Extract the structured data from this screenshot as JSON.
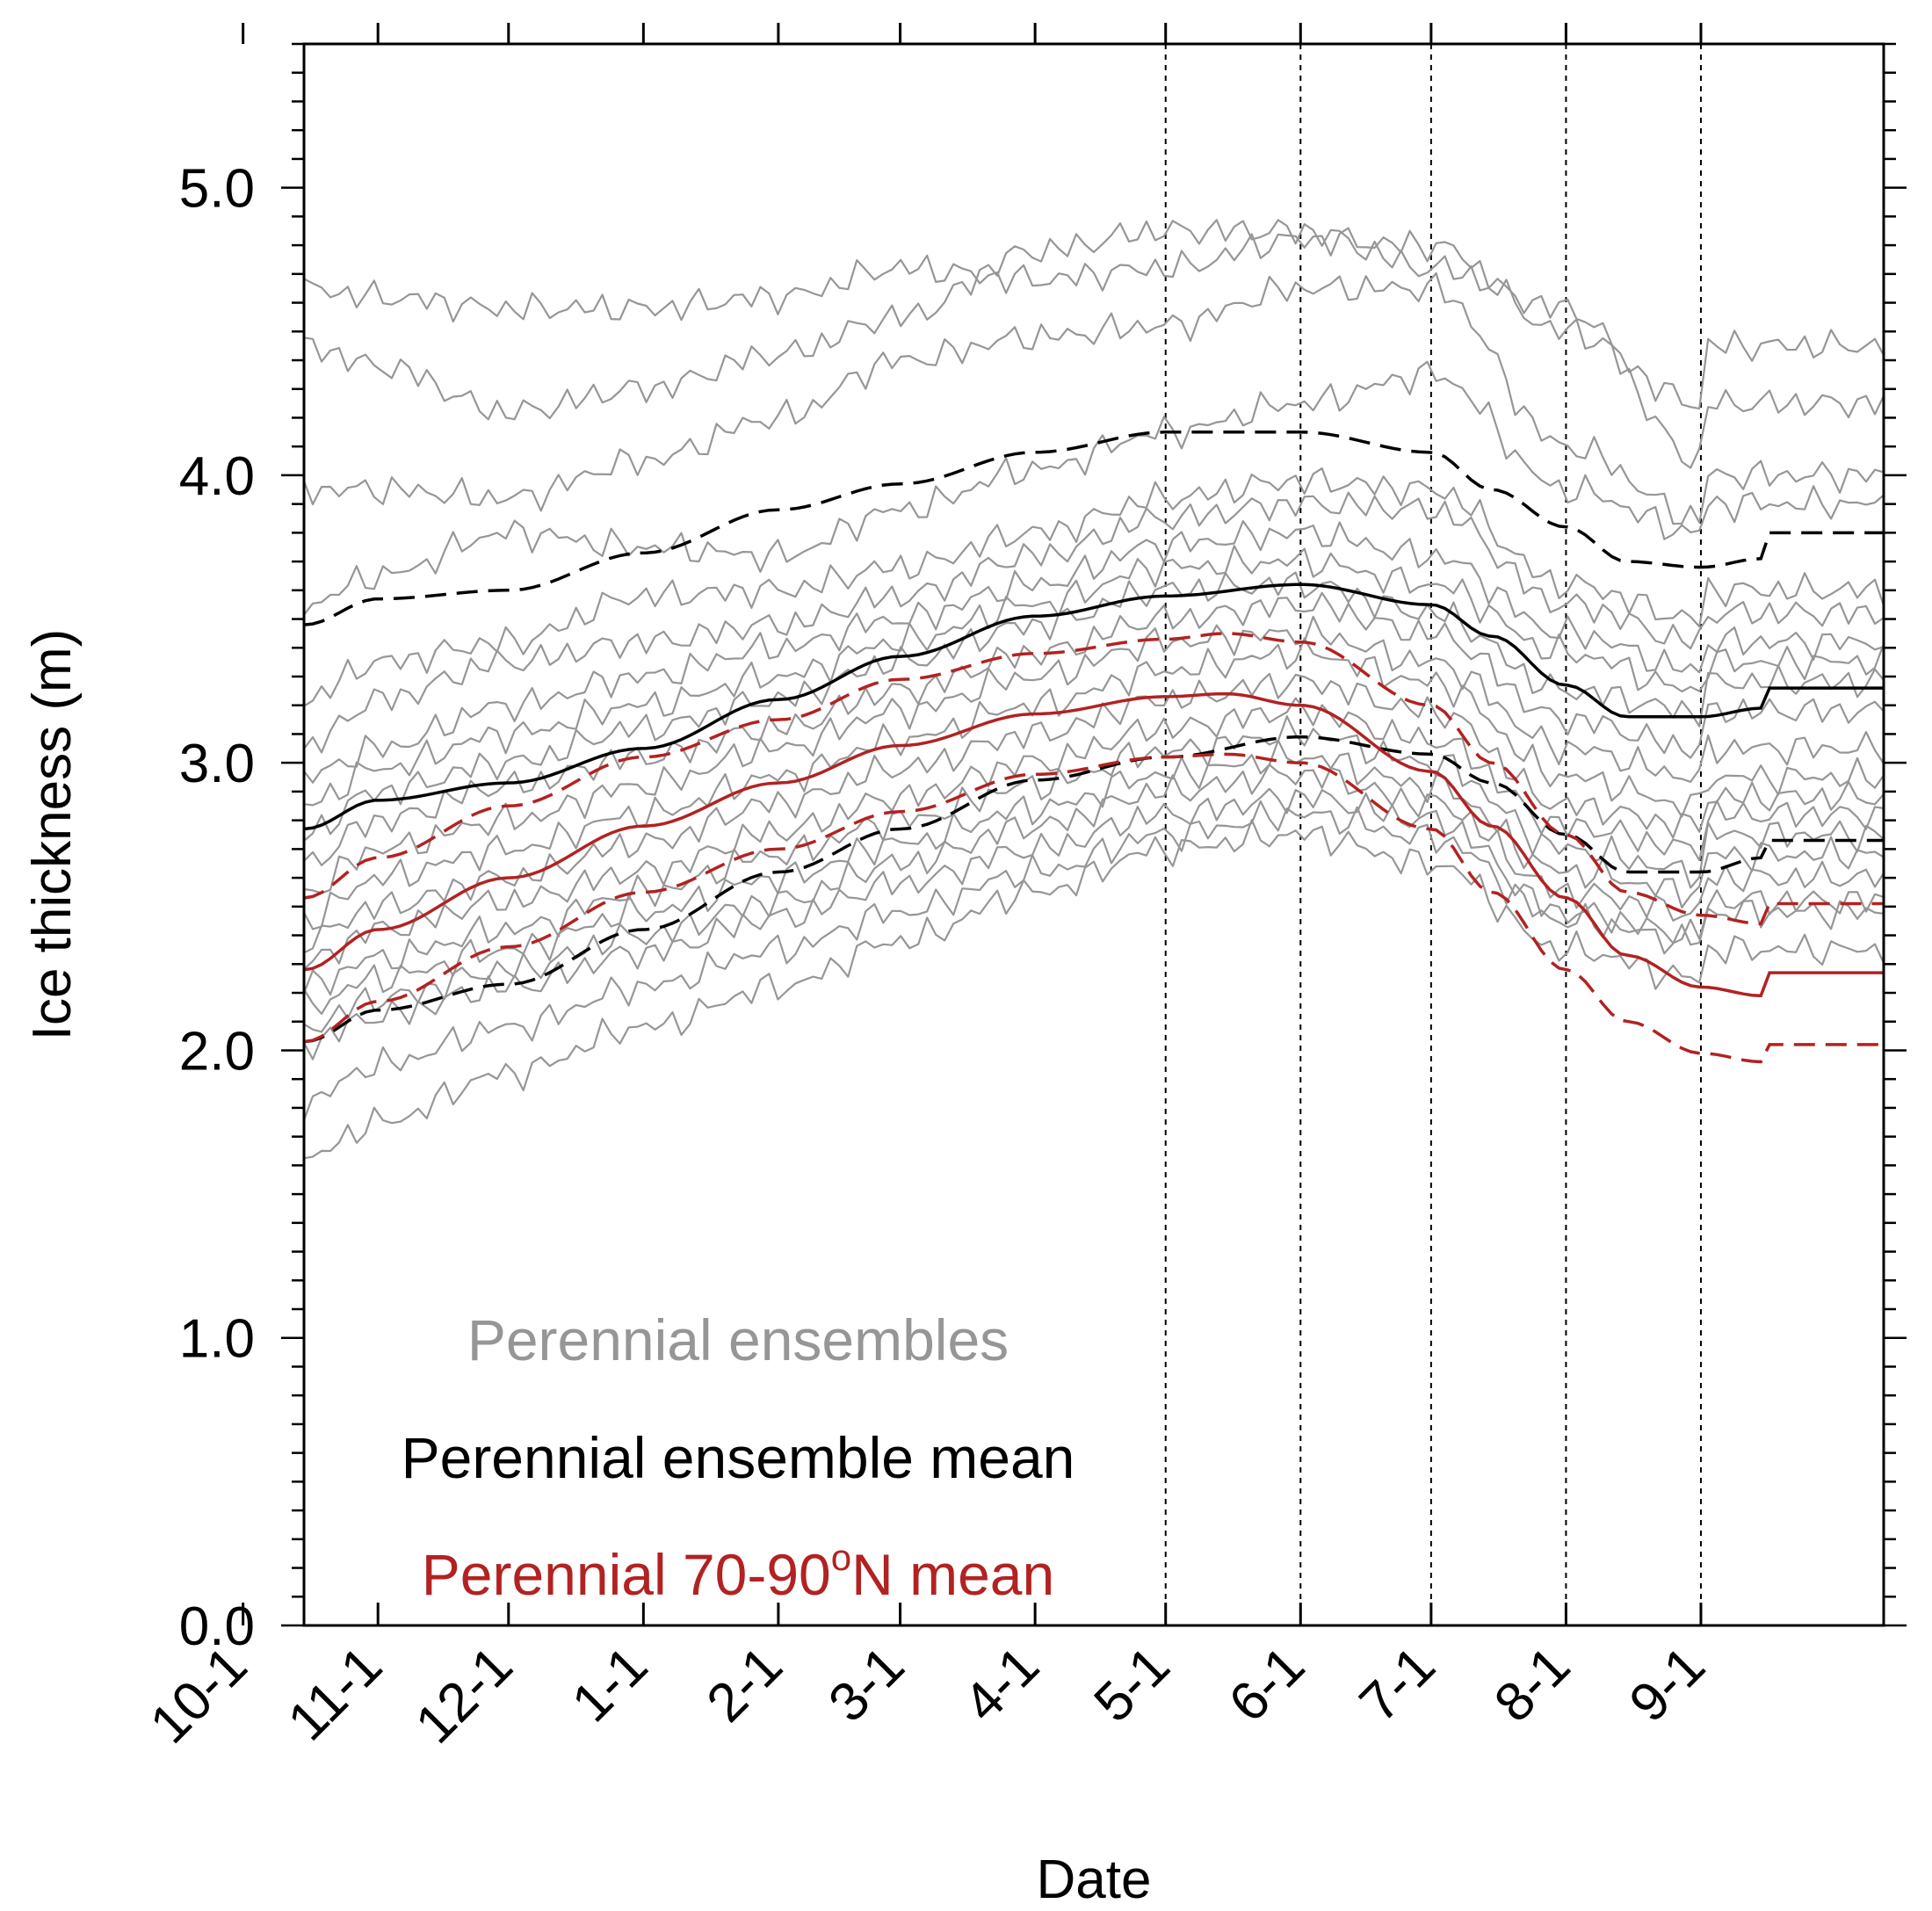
{
  "chart_data": {
    "type": "line",
    "xlabel": "Date",
    "ylabel": "Ice thickness (m)",
    "x_ticks": [
      "11-1",
      "12-1",
      "1-1",
      "2-1",
      "3-1",
      "4-1",
      "5-1",
      "6-1",
      "7-1",
      "8-1",
      "9-1",
      "10-1"
    ],
    "x_range": [
      "10-15",
      "10-13"
    ],
    "y_ticks": [
      "0.0",
      "1.0",
      "2.0",
      "3.0",
      "4.0",
      "5.0"
    ],
    "ylim": [
      0,
      5.5
    ],
    "vertical_reference_lines_at": [
      "5-1",
      "6-1",
      "7-1",
      "8-1",
      "9-1"
    ],
    "grid": false,
    "legend": {
      "placement": "bottom-left",
      "entries": [
        {
          "label": "Perennial ensembles",
          "color": "#969696"
        },
        {
          "label": "Perennial ensemble mean",
          "color": "#000000"
        },
        {
          "label_main": "Perennial 70-90",
          "label_sup": "o",
          "label_end": "N mean",
          "color": "#b22222"
        }
      ]
    },
    "colors": {
      "ensembles": "#969696",
      "ensemble_mean": "#000000",
      "regional_mean": "#b22222"
    },
    "series": [
      {
        "group": "ensemble_mean",
        "style": "solid",
        "x": [
          "10-15",
          "11-1",
          "12-1",
          "1-1",
          "2-1",
          "3-1",
          "4-1",
          "5-1",
          "6-1",
          "7-1",
          "7-15",
          "8-1",
          "8-15",
          "9-1",
          "9-15",
          "10-1",
          "10-13"
        ],
        "values": [
          2.77,
          2.87,
          2.93,
          3.05,
          3.22,
          3.37,
          3.51,
          3.58,
          3.62,
          3.55,
          3.44,
          3.27,
          3.16,
          3.16,
          3.19,
          3.22,
          3.26
        ]
      },
      {
        "group": "ensemble_mean",
        "style": "dashed",
        "x": [
          "10-15",
          "11-1",
          "12-1",
          "1-1",
          "2-1",
          "3-1",
          "4-1",
          "5-1",
          "6-1",
          "7-1",
          "7-15",
          "8-1",
          "8-15",
          "9-1",
          "9-15",
          "10-1",
          "10-13"
        ],
        "values": [
          3.48,
          3.57,
          3.6,
          3.73,
          3.88,
          3.97,
          4.08,
          4.15,
          4.15,
          4.08,
          3.95,
          3.82,
          3.7,
          3.68,
          3.71,
          3.74,
          3.8
        ]
      },
      {
        "group": "ensemble_mean",
        "style": "dashed",
        "x": [
          "10-15",
          "11-1",
          "12-1",
          "1-1",
          "2-1",
          "3-1",
          "4-1",
          "5-1",
          "6-1",
          "7-1",
          "7-15",
          "8-1",
          "8-15",
          "9-1",
          "9-15",
          "10-1",
          "10-13"
        ],
        "values": [
          2.03,
          2.14,
          2.23,
          2.42,
          2.62,
          2.77,
          2.94,
          3.02,
          3.09,
          3.03,
          2.93,
          2.75,
          2.62,
          2.62,
          2.67,
          2.7,
          2.73
        ]
      },
      {
        "group": "regional_mean",
        "style": "solid",
        "x": [
          "10-15",
          "11-1",
          "12-1",
          "1-1",
          "2-1",
          "3-1",
          "4-1",
          "5-1",
          "5-15",
          "6-1",
          "7-1",
          "7-15",
          "8-1",
          "8-15",
          "9-1",
          "9-15",
          "10-1",
          "10-13"
        ],
        "values": [
          2.28,
          2.42,
          2.6,
          2.78,
          2.93,
          3.06,
          3.17,
          3.23,
          3.24,
          3.2,
          2.97,
          2.78,
          2.53,
          2.33,
          2.22,
          2.19,
          2.22,
          2.27
        ]
      },
      {
        "group": "regional_mean",
        "style": "dashed",
        "x": [
          "10-15",
          "11-1",
          "12-1",
          "1-1",
          "2-1",
          "3-1",
          "4-1",
          "5-1",
          "5-15",
          "6-1",
          "7-1",
          "7-15",
          "8-1",
          "8-15",
          "9-1",
          "9-15",
          "10-1",
          "10-13"
        ],
        "values": [
          2.53,
          2.67,
          2.85,
          3.02,
          3.15,
          3.29,
          3.38,
          3.43,
          3.45,
          3.42,
          3.2,
          3.0,
          2.75,
          2.55,
          2.47,
          2.44,
          2.46,
          2.51
        ]
      },
      {
        "group": "regional_mean",
        "style": "dashed",
        "x": [
          "10-15",
          "11-1",
          "12-1",
          "1-1",
          "2-1",
          "3-1",
          "4-1",
          "5-1",
          "5-15",
          "6-1",
          "7-1",
          "7-15",
          "8-1",
          "8-15",
          "9-1",
          "9-15",
          "10-1",
          "10-13"
        ],
        "values": [
          2.03,
          2.17,
          2.36,
          2.55,
          2.7,
          2.83,
          2.96,
          3.02,
          3.03,
          3.0,
          2.77,
          2.55,
          2.28,
          2.1,
          1.99,
          1.96,
          1.98,
          2.02
        ]
      },
      {
        "group": "ensembles",
        "x": [
          "10-15",
          "11-1",
          "12-1",
          "1-1",
          "2-1",
          "3-1",
          "4-1",
          "5-1",
          "6-1",
          "7-1",
          "8-1",
          "9-1",
          "10-1",
          "10-13"
        ],
        "values": [
          4.65,
          4.62,
          4.58,
          4.58,
          4.62,
          4.72,
          4.68,
          4.72,
          4.82,
          4.8,
          4.5,
          4.25,
          4.4,
          4.45
        ]
      },
      {
        "group": "ensembles",
        "x": [
          "10-15",
          "11-1",
          "12-1",
          "1-1",
          "2-1",
          "3-1",
          "4-1",
          "5-1",
          "6-1",
          "7-1",
          "8-1",
          "9-1",
          "10-1",
          "10-13"
        ],
        "values": [
          4.45,
          4.38,
          4.22,
          4.3,
          4.42,
          4.55,
          4.78,
          4.85,
          4.85,
          4.72,
          4.58,
          4.05,
          4.18,
          4.25
        ]
      },
      {
        "group": "ensembles",
        "x": [
          "10-15",
          "11-1",
          "12-1",
          "1-1",
          "2-1",
          "3-1",
          "4-1",
          "5-1",
          "6-1",
          "7-1",
          "8-1",
          "9-1",
          "10-1",
          "10-13"
        ],
        "values": [
          3.95,
          3.95,
          3.92,
          4.05,
          4.2,
          4.4,
          4.48,
          4.52,
          4.65,
          4.65,
          4.1,
          3.85,
          3.93,
          4.0
        ]
      },
      {
        "group": "ensembles",
        "x": [
          "10-15",
          "11-1",
          "12-1",
          "1-1",
          "2-1",
          "3-1",
          "4-1",
          "5-1",
          "6-1",
          "7-1",
          "8-1",
          "9-1",
          "10-1",
          "10-13"
        ],
        "values": [
          3.55,
          3.65,
          3.8,
          3.75,
          3.72,
          3.88,
          4.02,
          4.15,
          4.25,
          4.35,
          3.95,
          3.8,
          3.85,
          3.9
        ]
      },
      {
        "group": "ensembles",
        "x": [
          "10-15",
          "11-1",
          "12-1",
          "1-1",
          "2-1",
          "3-1",
          "4-1",
          "5-1",
          "6-1",
          "7-1",
          "8-1",
          "9-1",
          "10-1",
          "10-13"
        ],
        "values": [
          3.22,
          3.35,
          3.42,
          3.58,
          3.6,
          3.68,
          3.8,
          3.92,
          3.98,
          3.95,
          3.62,
          3.5,
          3.56,
          3.6
        ]
      },
      {
        "group": "ensembles",
        "x": [
          "10-15",
          "11-1",
          "12-1",
          "1-1",
          "2-1",
          "3-1",
          "4-1",
          "5-1",
          "6-1",
          "7-1",
          "8-1",
          "9-1",
          "10-1",
          "10-13"
        ],
        "values": [
          3.05,
          3.22,
          3.35,
          3.42,
          3.48,
          3.58,
          3.72,
          3.85,
          3.9,
          3.88,
          3.55,
          3.42,
          3.48,
          3.52
        ]
      },
      {
        "group": "ensembles",
        "x": [
          "10-15",
          "11-1",
          "12-1",
          "1-1",
          "2-1",
          "3-1",
          "4-1",
          "5-1",
          "6-1",
          "7-1",
          "8-1",
          "9-1",
          "10-1",
          "10-13"
        ],
        "values": [
          2.95,
          3.05,
          3.2,
          3.3,
          3.4,
          3.5,
          3.62,
          3.76,
          3.8,
          3.72,
          3.45,
          3.32,
          3.38,
          3.42
        ]
      },
      {
        "group": "ensembles",
        "x": [
          "10-15",
          "11-1",
          "12-1",
          "1-1",
          "2-1",
          "3-1",
          "4-1",
          "5-1",
          "6-1",
          "7-1",
          "8-1",
          "9-1",
          "10-1",
          "10-13"
        ],
        "values": [
          2.85,
          2.98,
          3.1,
          3.2,
          3.3,
          3.42,
          3.55,
          3.68,
          3.7,
          3.62,
          3.38,
          3.25,
          3.3,
          3.35
        ]
      },
      {
        "group": "ensembles",
        "x": [
          "10-15",
          "11-1",
          "12-1",
          "1-1",
          "2-1",
          "3-1",
          "4-1",
          "5-1",
          "6-1",
          "7-1",
          "8-1",
          "9-1",
          "10-1",
          "10-13"
        ],
        "values": [
          2.75,
          2.9,
          3.0,
          3.12,
          3.22,
          3.35,
          3.48,
          3.6,
          3.62,
          3.52,
          3.25,
          3.18,
          3.22,
          3.28
        ]
      },
      {
        "group": "ensembles",
        "x": [
          "10-15",
          "11-1",
          "12-1",
          "1-1",
          "2-1",
          "3-1",
          "4-1",
          "5-1",
          "6-1",
          "7-1",
          "8-1",
          "9-1",
          "10-1",
          "10-13"
        ],
        "values": [
          2.65,
          2.8,
          2.92,
          3.02,
          3.12,
          3.25,
          3.38,
          3.5,
          3.55,
          3.45,
          3.15,
          3.05,
          3.12,
          3.18
        ]
      },
      {
        "group": "ensembles",
        "x": [
          "10-15",
          "11-1",
          "12-1",
          "1-1",
          "2-1",
          "3-1",
          "4-1",
          "5-1",
          "6-1",
          "7-1",
          "8-1",
          "9-1",
          "10-1",
          "10-13"
        ],
        "values": [
          2.55,
          2.7,
          2.8,
          2.92,
          3.05,
          3.18,
          3.3,
          3.42,
          3.45,
          3.35,
          3.05,
          2.95,
          3.0,
          3.05
        ]
      },
      {
        "group": "ensembles",
        "x": [
          "10-15",
          "11-1",
          "12-1",
          "1-1",
          "2-1",
          "3-1",
          "4-1",
          "5-1",
          "6-1",
          "7-1",
          "8-1",
          "9-1",
          "10-1",
          "10-13"
        ],
        "values": [
          2.45,
          2.6,
          2.7,
          2.82,
          2.95,
          3.08,
          3.2,
          3.32,
          3.38,
          3.28,
          2.95,
          2.85,
          2.92,
          2.95
        ]
      },
      {
        "group": "ensembles",
        "x": [
          "10-15",
          "11-1",
          "12-1",
          "1-1",
          "2-1",
          "3-1",
          "4-1",
          "5-1",
          "6-1",
          "7-1",
          "8-1",
          "9-1",
          "10-1",
          "10-13"
        ],
        "values": [
          2.38,
          2.5,
          2.6,
          2.72,
          2.86,
          2.98,
          3.1,
          3.22,
          3.28,
          3.18,
          2.85,
          2.78,
          2.85,
          2.88
        ]
      },
      {
        "group": "ensembles",
        "x": [
          "10-15",
          "11-1",
          "12-1",
          "1-1",
          "2-1",
          "3-1",
          "4-1",
          "5-1",
          "6-1",
          "7-1",
          "8-1",
          "9-1",
          "10-1",
          "10-13"
        ],
        "values": [
          2.3,
          2.42,
          2.52,
          2.62,
          2.76,
          2.88,
          3.0,
          3.12,
          3.18,
          3.08,
          2.78,
          2.7,
          2.78,
          2.82
        ]
      },
      {
        "group": "ensembles",
        "x": [
          "10-15",
          "11-1",
          "12-1",
          "1-1",
          "2-1",
          "3-1",
          "4-1",
          "5-1",
          "6-1",
          "7-1",
          "8-1",
          "9-1",
          "10-1",
          "10-13"
        ],
        "values": [
          2.22,
          2.32,
          2.42,
          2.55,
          2.68,
          2.8,
          2.92,
          3.04,
          3.1,
          3.0,
          2.7,
          2.62,
          2.7,
          2.75
        ]
      },
      {
        "group": "ensembles",
        "x": [
          "10-15",
          "11-1",
          "12-1",
          "1-1",
          "2-1",
          "3-1",
          "4-1",
          "5-1",
          "6-1",
          "7-1",
          "8-1",
          "9-1",
          "10-1",
          "10-13"
        ],
        "values": [
          2.15,
          2.25,
          2.35,
          2.48,
          2.6,
          2.72,
          2.84,
          2.96,
          3.02,
          2.92,
          2.62,
          2.55,
          2.62,
          2.68
        ]
      },
      {
        "group": "ensembles",
        "x": [
          "10-15",
          "11-1",
          "12-1",
          "1-1",
          "2-1",
          "3-1",
          "4-1",
          "5-1",
          "6-1",
          "7-1",
          "8-1",
          "9-1",
          "10-1",
          "10-13"
        ],
        "values": [
          2.08,
          2.18,
          2.28,
          2.4,
          2.52,
          2.65,
          2.78,
          2.9,
          2.96,
          2.86,
          2.55,
          2.48,
          2.55,
          2.6
        ]
      },
      {
        "group": "ensembles",
        "x": [
          "10-15",
          "11-1",
          "12-1",
          "1-1",
          "2-1",
          "3-1",
          "4-1",
          "5-1",
          "6-1",
          "7-1",
          "8-1",
          "9-1",
          "10-1",
          "10-13"
        ],
        "values": [
          2.02,
          2.12,
          2.22,
          2.34,
          2.46,
          2.58,
          2.7,
          2.82,
          2.88,
          2.8,
          2.48,
          2.4,
          2.48,
          2.52
        ]
      },
      {
        "group": "ensembles",
        "x": [
          "10-15",
          "11-1",
          "12-1",
          "1-1",
          "2-1",
          "3-1",
          "4-1",
          "5-1",
          "6-1",
          "7-1",
          "8-1",
          "9-1",
          "10-1",
          "10-13"
        ],
        "values": [
          1.82,
          1.95,
          2.08,
          2.22,
          2.35,
          2.48,
          2.62,
          2.75,
          2.82,
          2.74,
          2.45,
          2.38,
          2.44,
          2.48
        ]
      },
      {
        "group": "ensembles",
        "x": [
          "10-15",
          "11-1",
          "12-1",
          "1-1",
          "2-1",
          "3-1",
          "4-1",
          "5-1",
          "6-1",
          "7-1",
          "8-1",
          "9-1",
          "10-1",
          "10-13"
        ],
        "values": [
          1.62,
          1.75,
          1.92,
          2.08,
          2.22,
          2.38,
          2.55,
          2.7,
          2.75,
          2.65,
          2.35,
          2.25,
          2.3,
          2.35
        ]
      }
    ]
  }
}
